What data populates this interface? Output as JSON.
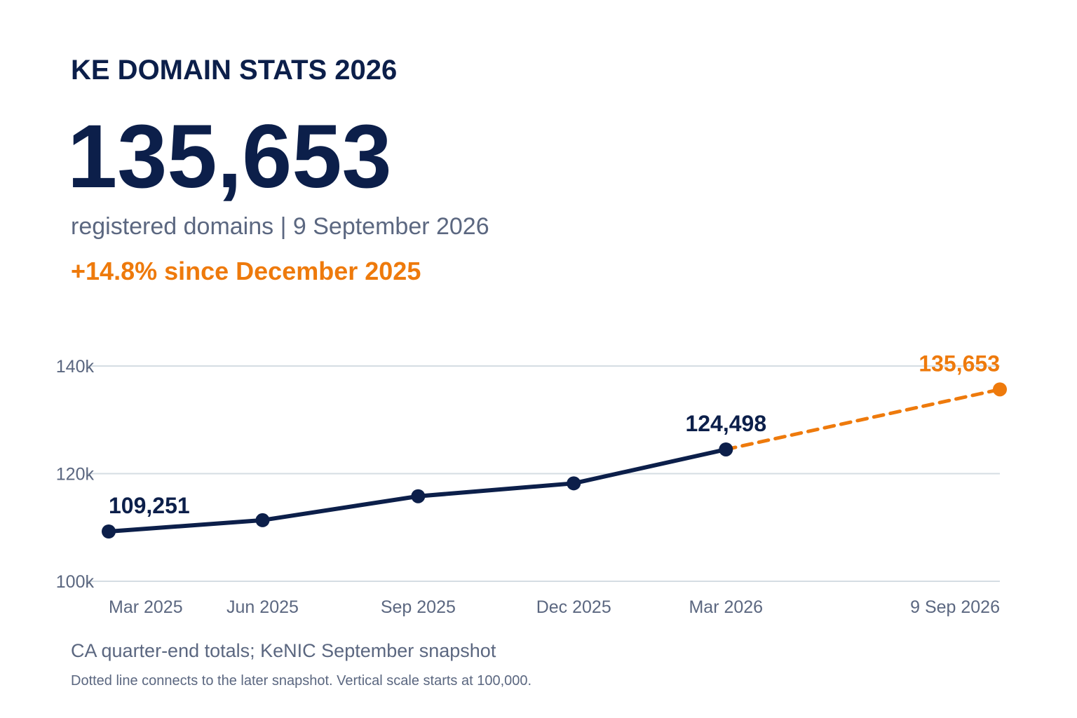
{
  "header": {
    "title": "KE DOMAIN STATS 2026",
    "headline_value": "135,653",
    "subtitle": "registered domains | 9 September 2026",
    "change": "+14.8% since December 2025"
  },
  "footer": {
    "source": "CA quarter-end totals; KeNIC September snapshot",
    "note": "Dotted line connects to the later snapshot. Vertical scale starts at 100,000."
  },
  "colors": {
    "primary": "#0c1f4a",
    "accent": "#ee7a0c",
    "muted": "#5b6780",
    "grid": "#d5dde3"
  },
  "chart_data": {
    "type": "line",
    "x_labels": [
      "Mar 2025",
      "Jun 2025",
      "Sep 2025",
      "Dec 2025",
      "Mar 2026",
      "9 Sep 2026"
    ],
    "x_dates": [
      "2025-03-31",
      "2025-06-30",
      "2025-09-30",
      "2025-12-31",
      "2026-03-31",
      "2026-09-09"
    ],
    "series": [
      {
        "style": "solid",
        "color": "#0c1f4a",
        "x": [
          "2025-03-31",
          "2025-06-30",
          "2025-09-30",
          "2025-12-31",
          "2026-03-31"
        ],
        "values": [
          109251,
          111350,
          115800,
          118200,
          124498
        ]
      },
      {
        "style": "dotted",
        "color": "#ee7a0c",
        "x": [
          "2026-03-31",
          "2026-09-09"
        ],
        "values": [
          124498,
          135653
        ]
      }
    ],
    "point_labels": [
      {
        "x": "2025-03-31",
        "value": 109251,
        "text": "109,251",
        "color": "#0c1f4a"
      },
      {
        "x": "2026-03-31",
        "value": 124498,
        "text": "124,498",
        "color": "#0c1f4a"
      },
      {
        "x": "2026-09-09",
        "value": 135653,
        "text": "135,653",
        "color": "#ee7a0c"
      }
    ],
    "y_ticks": [
      100000,
      120000,
      140000
    ],
    "y_tick_labels": [
      "100k",
      "120k",
      "140k"
    ],
    "ylim": [
      100000,
      140000
    ],
    "grid": true
  }
}
